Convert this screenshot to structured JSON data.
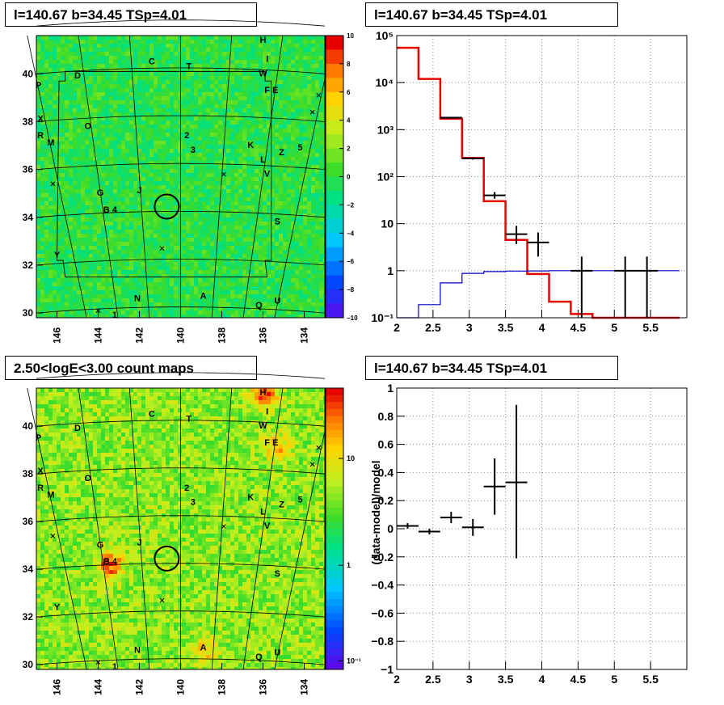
{
  "chart_data": [
    {
      "type": "heatmap",
      "title": "l=140.67 b=34.45 TSp=4.01",
      "xlim": [
        147,
        133
      ],
      "ylim": [
        29.8,
        41.6
      ],
      "x_ticks": [
        "146",
        "144",
        "142",
        "140",
        "138",
        "136",
        "134"
      ],
      "y_ticks": [
        "30",
        "32",
        "34",
        "36",
        "38",
        "40"
      ],
      "colorbar_range": [
        -10,
        10
      ],
      "colorbar_ticks": [
        "10",
        "8",
        "6",
        "4",
        "2",
        "0",
        "−2",
        "−4",
        "−6",
        "−8",
        "−10"
      ],
      "circle_center": [
        140.67,
        34.45
      ],
      "labels": [
        {
          "t": "H",
          "x": 136.0,
          "y": 41.3
        },
        {
          "t": "I",
          "x": 135.8,
          "y": 40.5
        },
        {
          "t": "C",
          "x": 141.4,
          "y": 40.4
        },
        {
          "t": "T",
          "x": 139.6,
          "y": 40.2
        },
        {
          "t": "W",
          "x": 136.0,
          "y": 39.9
        },
        {
          "t": "D",
          "x": 145.0,
          "y": 39.8
        },
        {
          "t": "F",
          "x": 135.8,
          "y": 39.2
        },
        {
          "t": "E",
          "x": 135.4,
          "y": 39.2
        },
        {
          "t": "P",
          "x": 146.9,
          "y": 39.4
        },
        {
          "t": "X",
          "x": 146.8,
          "y": 38.0
        },
        {
          "t": "O",
          "x": 144.5,
          "y": 37.7
        },
        {
          "t": "2",
          "x": 139.7,
          "y": 37.3
        },
        {
          "t": "3",
          "x": 139.4,
          "y": 36.7
        },
        {
          "t": "R",
          "x": 146.8,
          "y": 37.3
        },
        {
          "t": "M",
          "x": 146.3,
          "y": 37.0
        },
        {
          "t": "K",
          "x": 136.6,
          "y": 36.9
        },
        {
          "t": "Z",
          "x": 135.1,
          "y": 36.6
        },
        {
          "t": "5",
          "x": 134.2,
          "y": 36.8
        },
        {
          "t": "L",
          "x": 136.0,
          "y": 36.3
        },
        {
          "t": "V",
          "x": 135.8,
          "y": 35.7
        },
        {
          "t": "G",
          "x": 143.9,
          "y": 34.9
        },
        {
          "t": "J",
          "x": 142.0,
          "y": 35.0
        },
        {
          "t": "B",
          "x": 143.6,
          "y": 34.2
        },
        {
          "t": "4",
          "x": 143.2,
          "y": 34.2
        },
        {
          "t": "S",
          "x": 135.3,
          "y": 33.7
        },
        {
          "t": "Y",
          "x": 146.0,
          "y": 32.3
        },
        {
          "t": "N",
          "x": 142.1,
          "y": 30.5
        },
        {
          "t": "A",
          "x": 138.9,
          "y": 30.6
        },
        {
          "t": "Q",
          "x": 136.2,
          "y": 30.2
        },
        {
          "t": "U",
          "x": 135.3,
          "y": 30.4
        },
        {
          "t": "1",
          "x": 143.2,
          "y": 29.8
        }
      ]
    },
    {
      "type": "line",
      "title": "l=140.67 b=34.45 TSp=4.01",
      "xlim": [
        2,
        6
      ],
      "ylim": [
        0.1,
        100000
      ],
      "y_scale": "log",
      "x_ticks": [
        "2",
        "2.5",
        "3",
        "3.5",
        "4",
        "4.5",
        "5",
        "5.5"
      ],
      "y_ticks": [
        "10⁻¹",
        "1",
        "10",
        "10²",
        "10³",
        "10⁴",
        "10⁵"
      ],
      "grid": true,
      "series": [
        {
          "color": "#e60000",
          "bin_edges": [
            2.0,
            2.3,
            2.6,
            2.9,
            3.2,
            3.5,
            3.8,
            4.1,
            4.4,
            4.7,
            5.0,
            5.3,
            5.6,
            5.9
          ],
          "values": [
            55000,
            12000,
            1700,
            250,
            30,
            4.5,
            0.85,
            0.22,
            0.12,
            0.1,
            0.1,
            0.1,
            0.1
          ]
        },
        {
          "color": "#0000cc",
          "bin_edges": [
            2.0,
            2.3,
            2.6,
            2.9,
            3.2,
            3.5,
            3.8,
            4.1,
            4.4,
            4.7,
            5.0,
            5.3,
            5.6,
            5.9
          ],
          "values": [
            0.05,
            0.19,
            0.55,
            0.88,
            0.96,
            0.98,
            0.99,
            1.0,
            1.0,
            1.0,
            1.0,
            1.0,
            1.0
          ]
        },
        {
          "color": "#000000",
          "points": [
            {
              "x": 2.75,
              "y": 1800,
              "xerr": 0.15,
              "ylo": 1750,
              "yhi": 1850
            },
            {
              "x": 3.05,
              "y": 245,
              "xerr": 0.15,
              "ylo": 230,
              "yhi": 260
            },
            {
              "x": 3.35,
              "y": 40,
              "xerr": 0.15,
              "ylo": 34,
              "yhi": 47
            },
            {
              "x": 3.65,
              "y": 6,
              "xerr": 0.15,
              "ylo": 3.7,
              "yhi": 9
            },
            {
              "x": 3.95,
              "y": 4,
              "xerr": 0.15,
              "ylo": 2.0,
              "yhi": 6.5
            },
            {
              "x": 4.55,
              "y": 1,
              "xerr": 0.15,
              "ylo": 0.1,
              "yhi": 2.0
            },
            {
              "x": 5.15,
              "y": 1,
              "xerr": 0.15,
              "ylo": 0.1,
              "yhi": 2.0
            },
            {
              "x": 5.45,
              "y": 1,
              "xerr": 0.15,
              "ylo": 0.1,
              "yhi": 2.0
            }
          ]
        }
      ]
    },
    {
      "type": "heatmap",
      "title": "2.50<logE<3.00 count maps",
      "xlim": [
        147,
        133
      ],
      "ylim": [
        29.8,
        41.6
      ],
      "x_ticks": [
        "146",
        "144",
        "142",
        "140",
        "138",
        "136",
        "134"
      ],
      "y_ticks": [
        "30",
        "32",
        "34",
        "36",
        "38",
        "40"
      ],
      "colorbar_scale": "log",
      "colorbar_ticks": [
        "10",
        "1",
        "10⁻¹"
      ],
      "hotspots": [
        {
          "x": 136.0,
          "y": 41.5,
          "strength": 1.0
        },
        {
          "x": 143.5,
          "y": 34.3,
          "strength": 0.85
        },
        {
          "x": 135.4,
          "y": 39.2,
          "strength": 0.55
        },
        {
          "x": 138.9,
          "y": 30.6,
          "strength": 0.45
        }
      ]
    },
    {
      "type": "scatter",
      "title": "l=140.67 b=34.45 TSp=4.01",
      "xlim": [
        2,
        6
      ],
      "ylim": [
        -1,
        1
      ],
      "ylabel": "(data-model)/model",
      "x_ticks": [
        "2",
        "2.5",
        "3",
        "3.5",
        "4",
        "4.5",
        "5",
        "5.5"
      ],
      "y_ticks": [
        "−1",
        "−0.8",
        "−0.6",
        "−0.4",
        "−0.2",
        "0",
        "0.2",
        "0.4",
        "0.6",
        "0.8",
        "1"
      ],
      "grid": true,
      "points": [
        {
          "x": 2.15,
          "y": 0.02,
          "xerr": 0.15,
          "ylo": 0.0,
          "yhi": 0.04
        },
        {
          "x": 2.45,
          "y": -0.02,
          "xerr": 0.15,
          "ylo": -0.04,
          "yhi": 0.0
        },
        {
          "x": 2.75,
          "y": 0.08,
          "xerr": 0.15,
          "ylo": 0.04,
          "yhi": 0.12
        },
        {
          "x": 3.05,
          "y": 0.01,
          "xerr": 0.15,
          "ylo": -0.05,
          "yhi": 0.07
        },
        {
          "x": 3.35,
          "y": 0.3,
          "xerr": 0.15,
          "ylo": 0.1,
          "yhi": 0.5
        },
        {
          "x": 3.65,
          "y": 0.33,
          "xerr": 0.15,
          "ylo": -0.21,
          "yhi": 0.88
        }
      ]
    }
  ]
}
